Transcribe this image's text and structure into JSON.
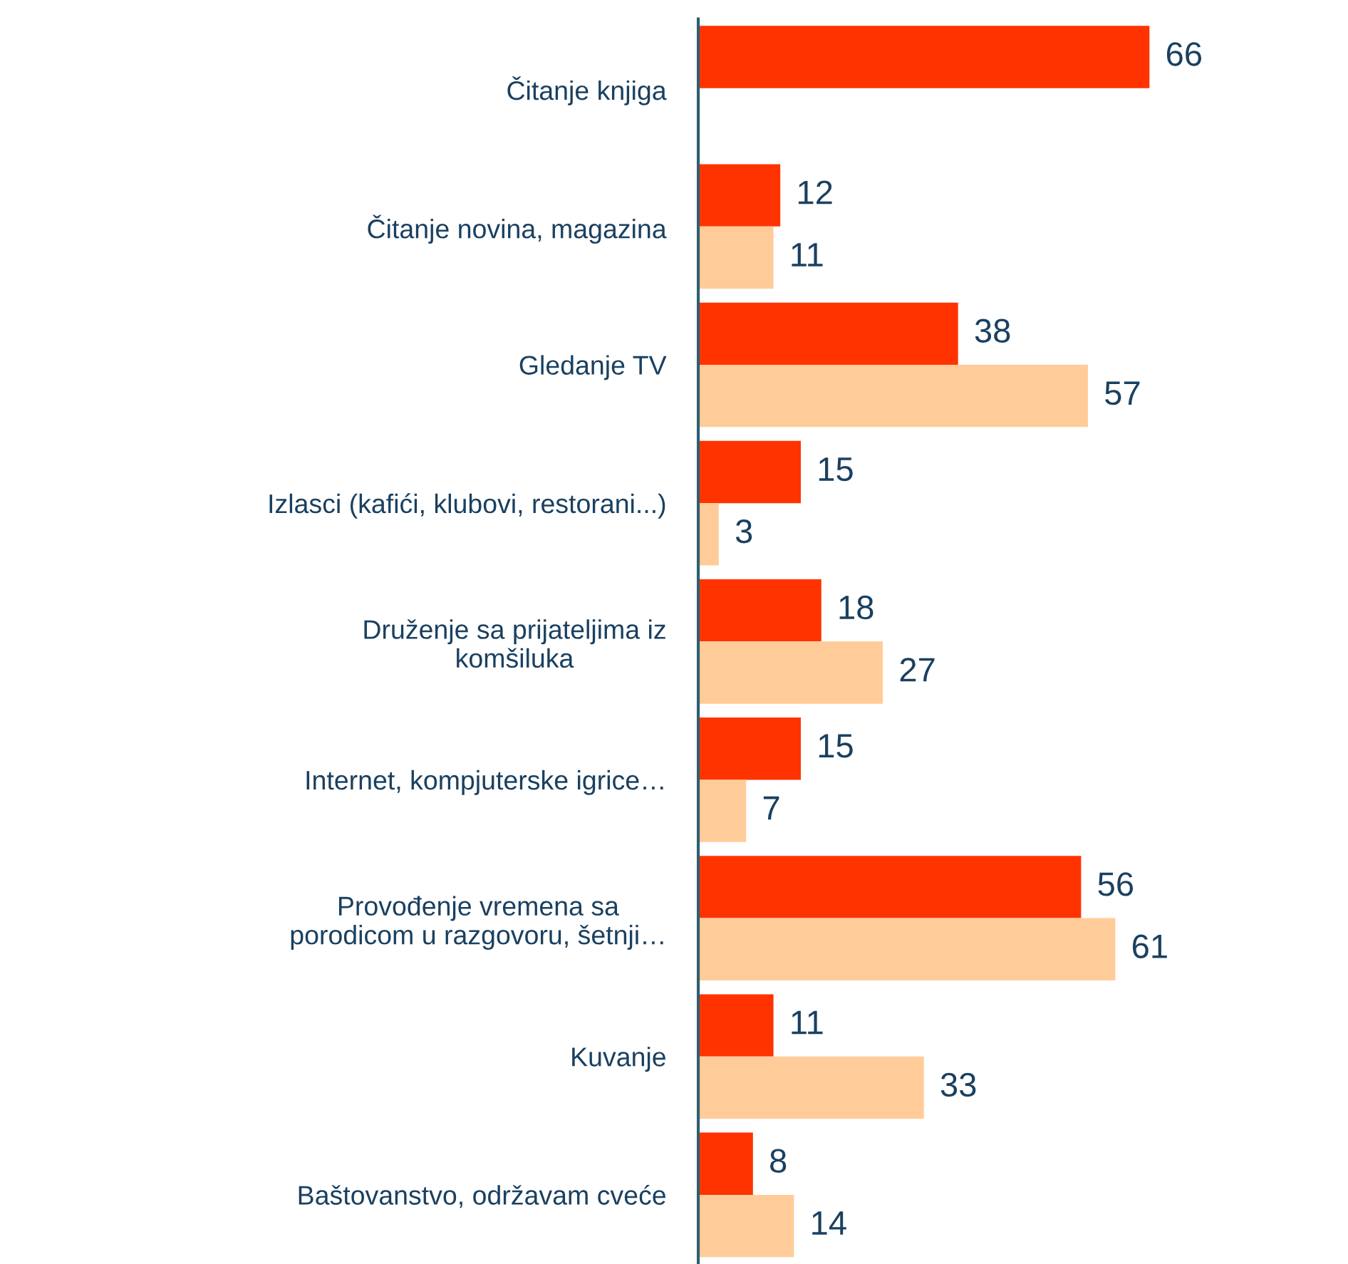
{
  "chart_data": {
    "type": "bar",
    "orientation": "horizontal",
    "data_labels": true,
    "grid": false,
    "legend": false,
    "categories": [
      "Čitanje knjiga",
      "Čitanje novina, magazina",
      "Gledanje TV",
      "Izlasci (kafići, klubovi, restorani...)",
      "Druženje sa prijateljima iz\nkomšiluka",
      "Internet, kompjuterske igrice…",
      "Provođenje vremena sa\nporodicom u razgovoru, šetnji…",
      "Kuvanje",
      "Baštovanstvo, održavam cveće"
    ],
    "series": [
      {
        "color": "#ff3300",
        "values": [
          66,
          12,
          38,
          15,
          18,
          15,
          56,
          11,
          8
        ]
      },
      {
        "color": "#ffcc99",
        "values": [
          null,
          11,
          57,
          3,
          27,
          7,
          61,
          33,
          14
        ]
      }
    ]
  }
}
